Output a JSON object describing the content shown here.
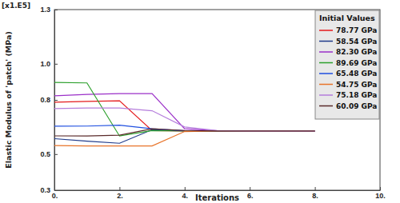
{
  "chart_data": {
    "type": "line",
    "x_label": "Iterations",
    "y_label": "Elastic Modulus of 'patch' (MPa)",
    "annotations": [
      "[x1.E5]"
    ],
    "legend_title": "Initial Values",
    "legend": "upper right",
    "grid": false,
    "x": [
      0,
      1,
      2,
      3,
      4,
      5,
      6,
      7,
      8
    ],
    "xlim": [
      0,
      10
    ],
    "xticks": [
      {
        "value": 0,
        "label": "0."
      },
      {
        "value": 2,
        "label": "2."
      },
      {
        "value": 4,
        "label": "4."
      },
      {
        "value": 6,
        "label": "6."
      },
      {
        "value": 8,
        "label": "8."
      },
      {
        "value": 10,
        "label": "10."
      }
    ],
    "ylim": [
      0.3,
      1.3
    ],
    "yticks": [
      0.3,
      0.5,
      0.8,
      {
        "value": 1,
        "label": "1.0"
      },
      1.3
    ],
    "series": [
      {
        "name": "78.77 GPa",
        "color": "#e41a1c",
        "values": [
          0.7877,
          0.792,
          0.795,
          0.63,
          0.628,
          0.628,
          0.628,
          0.628,
          0.628
        ]
      },
      {
        "name": "58.54 GPa",
        "color": "#1f3a8a",
        "values": [
          0.5854,
          0.572,
          0.56,
          0.635,
          0.629,
          0.628,
          0.628,
          0.628,
          0.628
        ]
      },
      {
        "name": "82.30 GPa",
        "color": "#9b30c8",
        "values": [
          0.823,
          0.83,
          0.835,
          0.835,
          0.64,
          0.629,
          0.628,
          0.628,
          0.628
        ]
      },
      {
        "name": "89.69 GPa",
        "color": "#2ca02c",
        "values": [
          0.8969,
          0.894,
          0.6,
          0.63,
          0.628,
          0.628,
          0.628,
          0.628,
          0.628
        ]
      },
      {
        "name": "65.48 GPa",
        "color": "#1f4fe0",
        "values": [
          0.6548,
          0.655,
          0.66,
          0.64,
          0.629,
          0.628,
          0.628,
          0.628,
          0.628
        ]
      },
      {
        "name": "54.75 GPa",
        "color": "#e8742a",
        "values": [
          0.5475,
          0.545,
          0.545,
          0.545,
          0.625,
          0.628,
          0.628,
          0.628,
          0.628
        ]
      },
      {
        "name": "75.18 GPa",
        "color": "#b57edc",
        "values": [
          0.7518,
          0.755,
          0.755,
          0.74,
          0.65,
          0.63,
          0.628,
          0.628,
          0.628
        ]
      },
      {
        "name": "60.09 GPa",
        "color": "#5a2a2a",
        "values": [
          0.6009,
          0.6,
          0.605,
          0.64,
          0.63,
          0.628,
          0.628,
          0.628,
          0.628
        ]
      }
    ]
  }
}
